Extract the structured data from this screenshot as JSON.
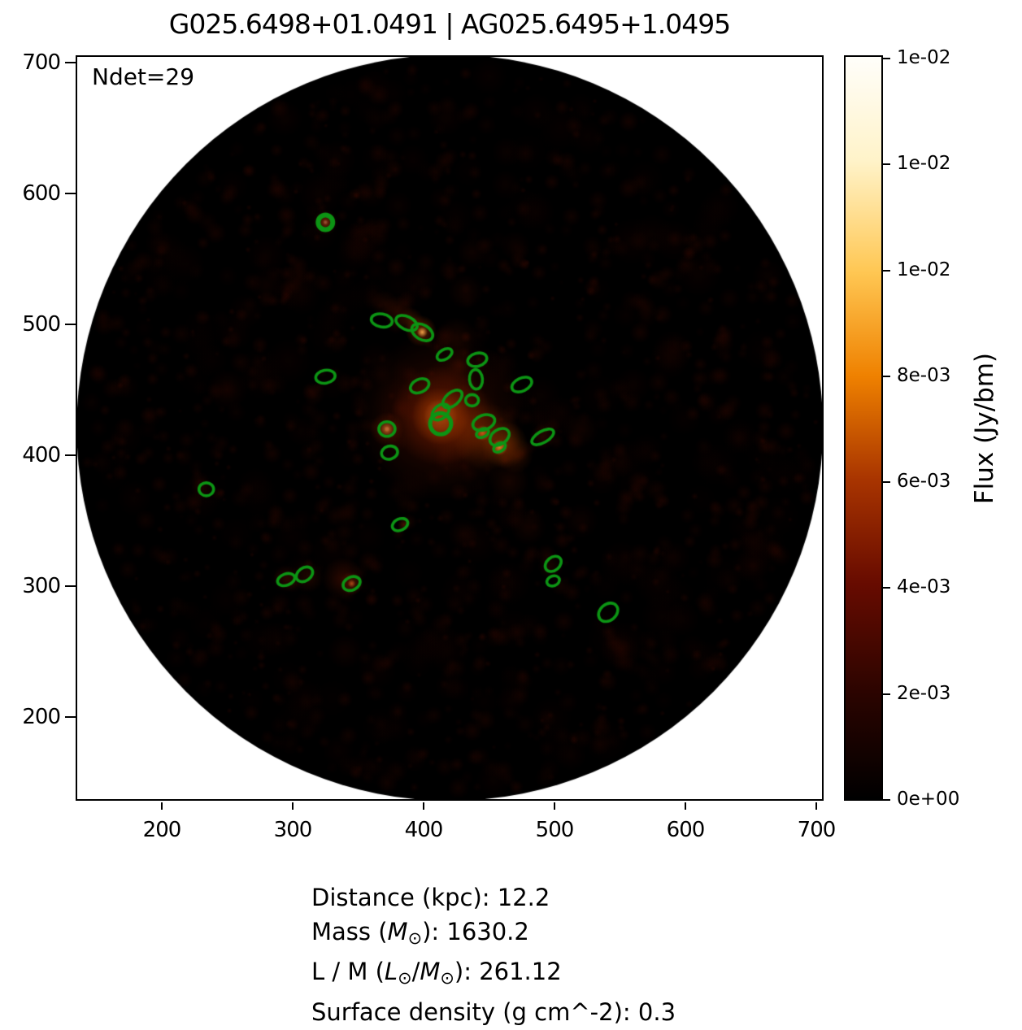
{
  "title": "G025.6498+01.0491 | AG025.6495+1.0495",
  "annotation": "Ndet=29",
  "colorbar": {
    "label": "Flux (Jy/bm)",
    "tick_labels": [
      "1e-02",
      "1e-02",
      "1e-02",
      "8e-03",
      "6e-03",
      "4e-03",
      "2e-03",
      "0e+00"
    ],
    "tick_values": [
      0.014,
      0.012,
      0.01,
      0.008,
      0.006,
      0.004,
      0.002,
      0.0
    ]
  },
  "info_lines": [
    [
      {
        "t": "Distance (kpc): 12.2"
      }
    ],
    [
      {
        "t": "Mass ("
      },
      {
        "t": "M",
        "i": 1
      },
      {
        "t": "⊙",
        "s": 1
      },
      {
        "t": "): 1630.2"
      }
    ],
    [
      {
        "t": "L / M ("
      },
      {
        "t": "L",
        "i": 1
      },
      {
        "t": "⊙",
        "s": 1
      },
      {
        "t": "/"
      },
      {
        "t": "M",
        "i": 1
      },
      {
        "t": "⊙",
        "s": 1
      },
      {
        "t": "): 261.12"
      }
    ],
    [
      {
        "t": "Surface density (g cm^-2): 0.3"
      }
    ]
  ],
  "chart_data": {
    "type": "heatmap",
    "title": "G025.6498+01.0491 | AG025.6495+1.0495",
    "xlabel": "",
    "ylabel": "",
    "colorbar_label": "Flux (Jy/bm)",
    "x_ticks": [
      200,
      300,
      400,
      500,
      600,
      700
    ],
    "y_ticks": [
      700,
      600,
      500,
      400,
      300,
      200
    ],
    "x_range": [
      134,
      706
    ],
    "y_range": [
      136,
      706
    ],
    "value_range": [
      0.0,
      0.0143
    ],
    "n_detections": 29,
    "marker_color": "#0c9414",
    "mask_circle": {
      "x": 420,
      "y": 421,
      "r": 285
    },
    "colormap_stops": [
      {
        "c": "#000000",
        "p": 0
      },
      {
        "c": "#2a0400",
        "p": 14
      },
      {
        "c": "#670b00",
        "p": 29
      },
      {
        "c": "#a83400",
        "p": 43
      },
      {
        "c": "#ef8100",
        "p": 57
      },
      {
        "c": "#ffc753",
        "p": 71
      },
      {
        "c": "#fff3c9",
        "p": 86
      },
      {
        "c": "#fffefa",
        "p": 100
      }
    ],
    "detections": [
      {
        "x": 325,
        "y": 578,
        "a": 9,
        "b": 9,
        "r": 0,
        "lw": 6
      },
      {
        "x": 368,
        "y": 503,
        "a": 13,
        "b": 8,
        "r": 10
      },
      {
        "x": 387,
        "y": 501,
        "a": 14,
        "b": 8,
        "r": 25
      },
      {
        "x": 399,
        "y": 494,
        "a": 14,
        "b": 9,
        "r": 30
      },
      {
        "x": 416,
        "y": 477,
        "a": 10,
        "b": 6,
        "r": -30
      },
      {
        "x": 441,
        "y": 473,
        "a": 12,
        "b": 8,
        "r": -15
      },
      {
        "x": 440,
        "y": 458,
        "a": 12,
        "b": 8,
        "r": 85
      },
      {
        "x": 325,
        "y": 460,
        "a": 12,
        "b": 8,
        "r": -10
      },
      {
        "x": 397,
        "y": 453,
        "a": 12,
        "b": 8,
        "r": -25
      },
      {
        "x": 422,
        "y": 443,
        "a": 14,
        "b": 8,
        "r": -40
      },
      {
        "x": 437,
        "y": 442,
        "a": 8,
        "b": 7,
        "r": 0
      },
      {
        "x": 475,
        "y": 454,
        "a": 13,
        "b": 8,
        "r": -25
      },
      {
        "x": 413,
        "y": 433,
        "a": 12,
        "b": 8,
        "r": -40
      },
      {
        "x": 413,
        "y": 424,
        "a": 13,
        "b": 13,
        "r": 0,
        "lw": 5
      },
      {
        "x": 446,
        "y": 425,
        "a": 14,
        "b": 9,
        "r": -20
      },
      {
        "x": 445,
        "y": 417,
        "a": 8,
        "b": 5,
        "r": -25
      },
      {
        "x": 458,
        "y": 414,
        "a": 13,
        "b": 9,
        "r": -35
      },
      {
        "x": 458,
        "y": 406,
        "a": 8,
        "b": 5,
        "r": -30
      },
      {
        "x": 491,
        "y": 414,
        "a": 15,
        "b": 7,
        "r": -30
      },
      {
        "x": 372,
        "y": 420,
        "a": 10,
        "b": 9,
        "r": 0
      },
      {
        "x": 374,
        "y": 402,
        "a": 10,
        "b": 8,
        "r": -15
      },
      {
        "x": 234,
        "y": 374,
        "a": 9,
        "b": 8,
        "r": 0
      },
      {
        "x": 382,
        "y": 347,
        "a": 10,
        "b": 7,
        "r": -25
      },
      {
        "x": 295,
        "y": 305,
        "a": 11,
        "b": 7,
        "r": -20
      },
      {
        "x": 309,
        "y": 309,
        "a": 11,
        "b": 8,
        "r": -35
      },
      {
        "x": 345,
        "y": 302,
        "a": 11,
        "b": 8,
        "r": -25
      },
      {
        "x": 499,
        "y": 317,
        "a": 11,
        "b": 8,
        "r": -40
      },
      {
        "x": 499,
        "y": 304,
        "a": 8,
        "b": 6,
        "r": -20
      },
      {
        "x": 541,
        "y": 280,
        "a": 13,
        "b": 10,
        "r": -40
      }
    ],
    "sources": [
      {
        "x": 413,
        "y": 430,
        "r": 7,
        "c": "#ffffff",
        "a": 1
      },
      {
        "x": 413,
        "y": 430,
        "r": 13,
        "c": "#ffe878",
        "a": 0.95
      },
      {
        "x": 413,
        "y": 430,
        "r": 22,
        "c": "#f57d00",
        "a": 0.8
      },
      {
        "x": 413,
        "y": 430,
        "r": 38,
        "c": "#b03000",
        "a": 0.55
      },
      {
        "x": 413,
        "y": 430,
        "r": 65,
        "c": "#601200",
        "a": 0.5
      },
      {
        "x": 430,
        "y": 424,
        "r": 30,
        "c": "#903000",
        "a": 0.35
      },
      {
        "x": 448,
        "y": 414,
        "r": 26,
        "c": "#a03800",
        "a": 0.45
      },
      {
        "x": 462,
        "y": 408,
        "r": 18,
        "c": "#c05000",
        "a": 0.4
      },
      {
        "x": 458,
        "y": 406,
        "r": 6,
        "c": "#ff9030",
        "a": 0.8
      },
      {
        "x": 445,
        "y": 417,
        "r": 6,
        "c": "#f07020",
        "a": 0.7
      },
      {
        "x": 470,
        "y": 400,
        "r": 14,
        "c": "#702000",
        "a": 0.4
      },
      {
        "x": 398,
        "y": 495,
        "r": 12,
        "c": "#c24000",
        "a": 0.5
      },
      {
        "x": 399,
        "y": 494,
        "r": 4,
        "c": "#ffb050",
        "a": 0.9
      },
      {
        "x": 390,
        "y": 503,
        "r": 10,
        "c": "#903000",
        "a": 0.4
      },
      {
        "x": 380,
        "y": 510,
        "r": 12,
        "c": "#601500",
        "a": 0.4
      },
      {
        "x": 370,
        "y": 516,
        "r": 10,
        "c": "#481000",
        "a": 0.35
      },
      {
        "x": 372,
        "y": 420,
        "r": 2.2,
        "c": "#ffffff",
        "a": 1
      },
      {
        "x": 372,
        "y": 420,
        "r": 6,
        "c": "#ffa040",
        "a": 0.85
      },
      {
        "x": 372,
        "y": 420,
        "r": 13,
        "c": "#802000",
        "a": 0.5
      },
      {
        "x": 325,
        "y": 578,
        "r": 1.8,
        "c": "#ffffff",
        "a": 1
      },
      {
        "x": 325,
        "y": 578,
        "r": 5,
        "c": "#e06020",
        "a": 0.7
      },
      {
        "x": 325,
        "y": 578,
        "r": 10,
        "c": "#501000",
        "a": 0.5
      },
      {
        "x": 345,
        "y": 302,
        "r": 3,
        "c": "#ff9040",
        "a": 0.85
      },
      {
        "x": 345,
        "y": 302,
        "r": 9,
        "c": "#a03000",
        "a": 0.45
      },
      {
        "x": 338,
        "y": 306,
        "r": 16,
        "c": "#5a1200",
        "a": 0.45
      },
      {
        "x": 312,
        "y": 307,
        "r": 12,
        "c": "#481000",
        "a": 0.4
      },
      {
        "x": 300,
        "y": 303,
        "r": 8,
        "c": "#400d00",
        "a": 0.35
      },
      {
        "x": 295,
        "y": 306,
        "r": 10,
        "c": "#501000",
        "a": 0.4
      },
      {
        "x": 420,
        "y": 455,
        "r": 20,
        "c": "#481000",
        "a": 0.4
      },
      {
        "x": 428,
        "y": 470,
        "r": 12,
        "c": "#501200",
        "a": 0.3
      },
      {
        "x": 425,
        "y": 490,
        "r": 16,
        "c": "#400d00",
        "a": 0.35
      },
      {
        "x": 432,
        "y": 525,
        "r": 14,
        "c": "#380a00",
        "a": 0.3
      },
      {
        "x": 437,
        "y": 555,
        "r": 12,
        "c": "#330800",
        "a": 0.28
      },
      {
        "x": 465,
        "y": 380,
        "r": 16,
        "c": "#400d00",
        "a": 0.35
      },
      {
        "x": 480,
        "y": 345,
        "r": 14,
        "c": "#3a0a00",
        "a": 0.3
      },
      {
        "x": 497,
        "y": 315,
        "r": 10,
        "c": "#420c00",
        "a": 0.35
      },
      {
        "x": 505,
        "y": 300,
        "r": 8,
        "c": "#380a00",
        "a": 0.3
      },
      {
        "x": 491,
        "y": 414,
        "r": 10,
        "c": "#581200",
        "a": 0.4
      },
      {
        "x": 520,
        "y": 420,
        "r": 14,
        "c": "#380a00",
        "a": 0.3
      },
      {
        "x": 385,
        "y": 347,
        "r": 5,
        "c": "#802000",
        "a": 0.5
      },
      {
        "x": 430,
        "y": 340,
        "r": 12,
        "c": "#320800",
        "a": 0.28
      },
      {
        "x": 250,
        "y": 450,
        "r": 16,
        "c": "#340800",
        "a": 0.3
      },
      {
        "x": 340,
        "y": 250,
        "r": 14,
        "c": "#300700",
        "a": 0.28
      },
      {
        "x": 550,
        "y": 250,
        "r": 15,
        "c": "#2e0700",
        "a": 0.25
      },
      {
        "x": 590,
        "y": 480,
        "r": 16,
        "c": "#300700",
        "a": 0.25
      },
      {
        "x": 280,
        "y": 530,
        "r": 13,
        "c": "#2e0700",
        "a": 0.25
      },
      {
        "x": 360,
        "y": 600,
        "r": 12,
        "c": "#2e0700",
        "a": 0.22
      },
      {
        "x": 470,
        "y": 560,
        "r": 12,
        "c": "#300700",
        "a": 0.25
      },
      {
        "x": 520,
        "y": 350,
        "r": 14,
        "c": "#300700",
        "a": 0.25
      }
    ]
  }
}
